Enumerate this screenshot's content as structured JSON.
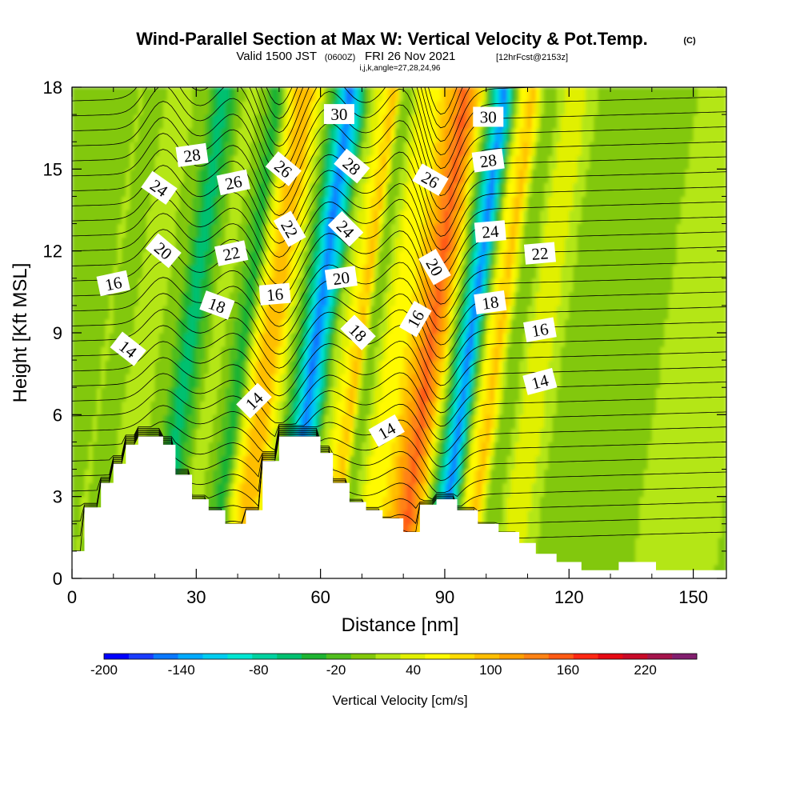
{
  "chart_data": {
    "type": "heatmap",
    "title": "Wind-Parallel Section at Max W: Vertical Velocity & Pot.Temp.",
    "title_mark": "(C)",
    "subtitle": {
      "valid": "Valid 1500 JST",
      "utc": "(0600Z)",
      "date": "FRI 26 Nov 2021",
      "fcst": "[12hrFcst@2153z]"
    },
    "indices": "i,j,k,angle=27,28,24,96",
    "xlabel": "Distance [nm]",
    "ylabel": "Height [Kft MSL]",
    "xlim": [
      0,
      158
    ],
    "ylim": [
      0,
      18
    ],
    "x_ticks": [
      0,
      30,
      60,
      90,
      120,
      150
    ],
    "x_tick_labels": [
      "0",
      "30",
      "60",
      "90",
      "120",
      "150"
    ],
    "y_ticks": [
      0,
      3,
      6,
      9,
      12,
      15,
      18
    ],
    "y_tick_labels": [
      "0",
      "3",
      "6",
      "9",
      "12",
      "15",
      "18"
    ],
    "colorbar": {
      "label": "Vertical Velocity [cm/s]",
      "tick_labels": [
        "-200",
        "-140",
        "-80",
        "-20",
        "40",
        "100",
        "160",
        "220"
      ],
      "tick_values": [
        -200,
        -140,
        -80,
        -20,
        40,
        100,
        160,
        220
      ],
      "min": -200,
      "max": 260,
      "step": 20,
      "colors": [
        "#0000ff",
        "#1a3cff",
        "#0a78ff",
        "#00aaff",
        "#00cdf0",
        "#00e6d2",
        "#00d2a0",
        "#00c070",
        "#1eb432",
        "#50be1e",
        "#82c80a",
        "#b4e614",
        "#e1f000",
        "#fffa00",
        "#ffdc00",
        "#ffbe00",
        "#ffa000",
        "#ff8214",
        "#ff5a14",
        "#ff2814",
        "#e60a14",
        "#c80a28",
        "#a5144b",
        "#821e6e"
      ]
    },
    "velocity_bands": [
      {
        "x": 0,
        "w": 40
      },
      {
        "x": 1.5,
        "w": 15
      },
      {
        "x": 4,
        "w": 5
      },
      {
        "x": 10,
        "w": 40
      },
      {
        "x": 17,
        "w": 0
      },
      {
        "x": 20.5,
        "w": -60
      },
      {
        "x": 23,
        "w": -20
      },
      {
        "x": 27,
        "w": 40
      },
      {
        "x": 31,
        "w": 0
      },
      {
        "x": 34,
        "w": -40
      },
      {
        "x": 36.5,
        "w": 60
      },
      {
        "x": 39,
        "w": 110
      },
      {
        "x": 41,
        "w": 120
      },
      {
        "x": 45.5,
        "w": 20
      },
      {
        "x": 48.5,
        "w": -60
      },
      {
        "x": 51,
        "w": -160
      },
      {
        "x": 53,
        "w": -100
      },
      {
        "x": 56,
        "w": 20
      },
      {
        "x": 58,
        "w": 50
      },
      {
        "x": 62,
        "w": 110
      },
      {
        "x": 64,
        "w": 0
      },
      {
        "x": 66,
        "w": 20
      },
      {
        "x": 68.5,
        "w": 60
      },
      {
        "x": 71.5,
        "w": 60
      },
      {
        "x": 75,
        "w": 110
      },
      {
        "x": 79,
        "w": 170
      },
      {
        "x": 82,
        "w": 110
      },
      {
        "x": 84,
        "w": 20
      },
      {
        "x": 86.5,
        "w": -80
      },
      {
        "x": 88.5,
        "w": -160
      },
      {
        "x": 90.5,
        "w": -40
      },
      {
        "x": 92.5,
        "w": 60
      },
      {
        "x": 95.5,
        "w": 110
      },
      {
        "x": 98,
        "w": 20
      },
      {
        "x": 100,
        "w": 0
      },
      {
        "x": 103,
        "w": 40
      },
      {
        "x": 107,
        "w": 50
      },
      {
        "x": 111,
        "w": 20
      },
      {
        "x": 116,
        "w": 0
      },
      {
        "x": 125,
        "w": 10
      },
      {
        "x": 135,
        "w": 20
      },
      {
        "x": 145,
        "w": 20
      },
      {
        "x": 152,
        "w": 30
      },
      {
        "x": 158,
        "w": 10
      }
    ],
    "terrain": [
      {
        "x": 0,
        "h": 1
      },
      {
        "x": 3,
        "h": 2.6
      },
      {
        "x": 7,
        "h": 3.5
      },
      {
        "x": 10,
        "h": 4.2
      },
      {
        "x": 13,
        "h": 4.9
      },
      {
        "x": 16,
        "h": 5.2
      },
      {
        "x": 22,
        "h": 4.9
      },
      {
        "x": 25,
        "h": 3.8
      },
      {
        "x": 29,
        "h": 2.9
      },
      {
        "x": 33,
        "h": 2.5
      },
      {
        "x": 37,
        "h": 2.0
      },
      {
        "x": 42,
        "h": 2.5
      },
      {
        "x": 46,
        "h": 4.3
      },
      {
        "x": 50,
        "h": 5.2
      },
      {
        "x": 55,
        "h": 5.2
      },
      {
        "x": 60,
        "h": 4.6
      },
      {
        "x": 63,
        "h": 3.5
      },
      {
        "x": 67,
        "h": 2.8
      },
      {
        "x": 71,
        "h": 2.5
      },
      {
        "x": 75,
        "h": 2.2
      },
      {
        "x": 80,
        "h": 1.7
      },
      {
        "x": 84,
        "h": 2.7
      },
      {
        "x": 88,
        "h": 2.9
      },
      {
        "x": 93,
        "h": 2.5
      },
      {
        "x": 98,
        "h": 2.0
      },
      {
        "x": 103,
        "h": 1.7
      },
      {
        "x": 108,
        "h": 1.3
      },
      {
        "x": 112,
        "h": 0.9
      },
      {
        "x": 117,
        "h": 0.6
      },
      {
        "x": 123,
        "h": 0.3
      },
      {
        "x": 132,
        "h": 0.6
      },
      {
        "x": 141,
        "h": 0.3
      },
      {
        "x": 150,
        "h": 0.3
      },
      {
        "x": 158,
        "h": 0.3
      }
    ],
    "isentrope_labels": [
      {
        "text": "30",
        "x": 64.5,
        "y": 17.0,
        "rot": 0
      },
      {
        "text": "30",
        "x": 100.5,
        "y": 16.9,
        "rot": 0
      },
      {
        "text": "28",
        "x": 29,
        "y": 15.5,
        "rot": -8
      },
      {
        "text": "28",
        "x": 67.5,
        "y": 15.1,
        "rot": 40
      },
      {
        "text": "28",
        "x": 100.5,
        "y": 15.3,
        "rot": -8
      },
      {
        "text": "26",
        "x": 51,
        "y": 15.0,
        "rot": 40
      },
      {
        "text": "26",
        "x": 86.5,
        "y": 14.6,
        "rot": 30
      },
      {
        "text": "26",
        "x": 39,
        "y": 14.5,
        "rot": -12
      },
      {
        "text": "24",
        "x": 21,
        "y": 14.3,
        "rot": 35
      },
      {
        "text": "24",
        "x": 66,
        "y": 12.8,
        "rot": 45
      },
      {
        "text": "24",
        "x": 101,
        "y": 12.7,
        "rot": -5
      },
      {
        "text": "22",
        "x": 52.5,
        "y": 12.8,
        "rot": 60
      },
      {
        "text": "22",
        "x": 38.5,
        "y": 11.9,
        "rot": -12
      },
      {
        "text": "22",
        "x": 113,
        "y": 11.9,
        "rot": -5
      },
      {
        "text": "20",
        "x": 22,
        "y": 12.0,
        "rot": 40
      },
      {
        "text": "20",
        "x": 87.5,
        "y": 11.4,
        "rot": 60
      },
      {
        "text": "20",
        "x": 65,
        "y": 11.0,
        "rot": -8
      },
      {
        "text": "16",
        "x": 10,
        "y": 10.8,
        "rot": -12
      },
      {
        "text": "16",
        "x": 49,
        "y": 10.4,
        "rot": -5
      },
      {
        "text": "16",
        "x": 83,
        "y": 9.5,
        "rot": -60
      },
      {
        "text": "16",
        "x": 113,
        "y": 9.1,
        "rot": -10
      },
      {
        "text": "18",
        "x": 35,
        "y": 10.0,
        "rot": 20
      },
      {
        "text": "18",
        "x": 101,
        "y": 10.1,
        "rot": -8
      },
      {
        "text": "18",
        "x": 69,
        "y": 9.0,
        "rot": 45
      },
      {
        "text": "14",
        "x": 13.5,
        "y": 8.4,
        "rot": 38
      },
      {
        "text": "14",
        "x": 113,
        "y": 7.2,
        "rot": -15
      },
      {
        "text": "14",
        "x": 44,
        "y": 6.5,
        "rot": -45
      },
      {
        "text": "14",
        "x": 76,
        "y": 5.4,
        "rot": -30
      }
    ]
  }
}
